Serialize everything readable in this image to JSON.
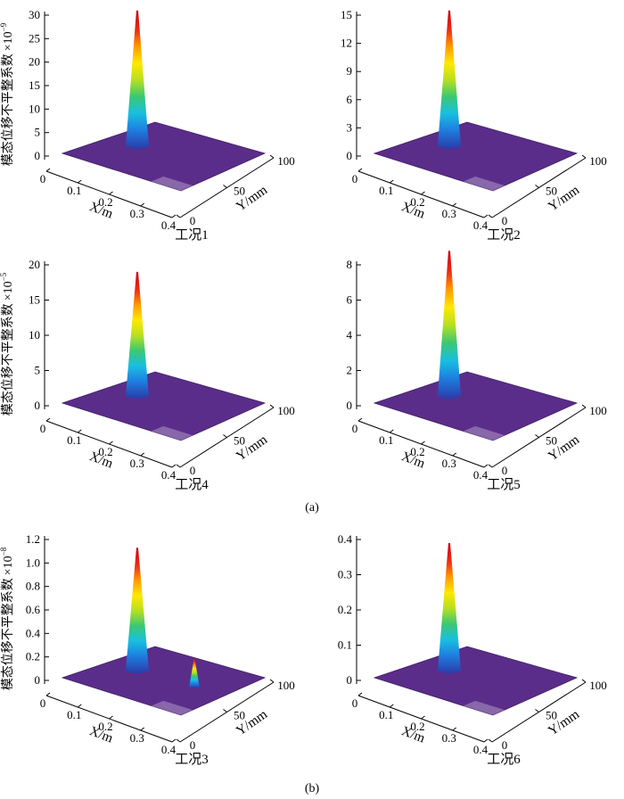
{
  "colors": {
    "plane": "#5b2d8a",
    "plane_edge": "#3e1d63",
    "axis": "#000000"
  },
  "section_labels": {
    "a": "(a)",
    "b": "(b)"
  },
  "chart_data": [
    {
      "id": "c1",
      "type": "3d-surface",
      "caption": "工况1",
      "zlabel": "模态位移不平整系数",
      "zexp_prefix": "×10",
      "zexp": "−9",
      "zticks": [
        "0",
        "5",
        "10",
        "15",
        "20",
        "25",
        "30"
      ],
      "zlim": [
        0,
        30
      ],
      "zpeak": 31,
      "xlabel": "X/m",
      "xticks": [
        "0",
        "0.1",
        "0.2",
        "0.3",
        "0.4"
      ],
      "xlim": [
        0,
        0.4
      ],
      "ylabel": "Y/mm",
      "yticks": [
        "0",
        "50",
        "100"
      ],
      "ylim": [
        0,
        100
      ],
      "peak": {
        "x": 0.1,
        "y": 50
      }
    },
    {
      "id": "c2",
      "type": "3d-surface",
      "caption": "工况2",
      "zticks": [
        "0",
        "3",
        "6",
        "9",
        "12",
        "15"
      ],
      "zlim": [
        0,
        15
      ],
      "zpeak": 15.5,
      "xlabel": "X/m",
      "xticks": [
        "0",
        "0.1",
        "0.2",
        "0.3",
        "0.4"
      ],
      "xlim": [
        0,
        0.4
      ],
      "ylabel": "Y/mm",
      "yticks": [
        "0",
        "50",
        "100"
      ],
      "ylim": [
        0,
        100
      ],
      "peak": {
        "x": 0.1,
        "y": 50
      }
    },
    {
      "id": "c4",
      "type": "3d-surface",
      "caption": "工况4",
      "zlabel": "模态位移不平整系数",
      "zexp_prefix": "×10",
      "zexp": "−5",
      "zticks": [
        "0",
        "5",
        "10",
        "15",
        "20"
      ],
      "zlim": [
        0,
        20
      ],
      "zpeak": 19,
      "xlabel": "X/m",
      "xticks": [
        "0",
        "0.1",
        "0.2",
        "0.3",
        "0.4"
      ],
      "xlim": [
        0,
        0.4
      ],
      "ylabel": "Y/mm",
      "yticks": [
        "0",
        "50",
        "100"
      ],
      "ylim": [
        0,
        100
      ],
      "peak": {
        "x": 0.1,
        "y": 50
      }
    },
    {
      "id": "c5",
      "type": "3d-surface",
      "caption": "工况5",
      "zticks": [
        "0",
        "2",
        "4",
        "6",
        "8"
      ],
      "zlim": [
        0,
        8
      ],
      "zpeak": 8.8,
      "xlabel": "X/m",
      "xticks": [
        "0",
        "0.1",
        "0.2",
        "0.3",
        "0.4"
      ],
      "xlim": [
        0,
        0.4
      ],
      "ylabel": "Y/mm",
      "yticks": [
        "0",
        "50",
        "100"
      ],
      "ylim": [
        0,
        100
      ],
      "peak": {
        "x": 0.1,
        "y": 50
      }
    },
    {
      "id": "c3",
      "type": "3d-surface",
      "caption": "工况3",
      "zlabel": "模态位移不平整系数",
      "zexp_prefix": "×10",
      "zexp": "−8",
      "zticks": [
        "0",
        "0.2",
        "0.4",
        "0.6",
        "0.8",
        "1.0",
        "1.2"
      ],
      "zlim": [
        0,
        1.2
      ],
      "zpeak": 1.13,
      "xlabel": "X/m",
      "xticks": [
        "0",
        "0.1",
        "0.2",
        "0.3",
        "0.4"
      ],
      "xlim": [
        0,
        0.4
      ],
      "ylabel": "Y/mm",
      "yticks": [
        "0",
        "50",
        "100"
      ],
      "ylim": [
        0,
        100
      ],
      "peak": {
        "x": 0.1,
        "y": 50
      },
      "secondary_peak": {
        "x": 0.3,
        "y": 50,
        "z": 0.2
      }
    },
    {
      "id": "c6",
      "type": "3d-surface",
      "caption": "工况6",
      "zticks": [
        "0",
        "0.1",
        "0.2",
        "0.3",
        "0.4"
      ],
      "zlim": [
        0,
        0.4
      ],
      "zpeak": 0.39,
      "xlabel": "X/m",
      "xticks": [
        "0",
        "0.1",
        "0.2",
        "0.3",
        "0.4"
      ],
      "xlim": [
        0,
        0.4
      ],
      "ylabel": "Y/mm",
      "yticks": [
        "0",
        "50",
        "100"
      ],
      "ylim": [
        0,
        100
      ],
      "peak": {
        "x": 0.1,
        "y": 50
      }
    }
  ]
}
